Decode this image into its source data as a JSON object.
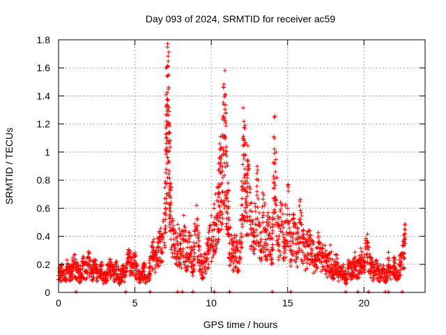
{
  "chart_data": {
    "type": "scatter",
    "title": "Day 093 of 2024, SRMTID for receiver ac59",
    "xlabel": "GPS time / hours",
    "ylabel": "SRMTID / TECUs",
    "xlim": [
      0,
      24
    ],
    "ylim": [
      0,
      1.8
    ],
    "xticks": [
      0,
      5,
      10,
      15,
      20
    ],
    "xtick_labels": [
      "0",
      "5",
      "10",
      "15",
      "20"
    ],
    "yticks": [
      0,
      0.2,
      0.4,
      0.6,
      0.8,
      1.0,
      1.2,
      1.4,
      1.6,
      1.8
    ],
    "ytick_labels": [
      "0",
      "0.2",
      "0.4",
      "0.6",
      "0.8",
      "1",
      "1.2",
      "1.4",
      "1.6",
      "1.8"
    ],
    "grid": true,
    "marker": "+",
    "color": "#ff0000",
    "series": [
      {
        "name": "SRMTID",
        "points": [
          [
            0.0,
            0.12
          ],
          [
            0.2,
            0.15
          ],
          [
            0.4,
            0.1
          ],
          [
            0.6,
            0.18
          ],
          [
            0.8,
            0.13
          ],
          [
            1.0,
            0.2
          ],
          [
            1.2,
            0.16
          ],
          [
            1.4,
            0.12
          ],
          [
            1.6,
            0.19
          ],
          [
            1.8,
            0.15
          ],
          [
            2.0,
            0.22
          ],
          [
            2.2,
            0.14
          ],
          [
            2.4,
            0.18
          ],
          [
            2.6,
            0.11
          ],
          [
            2.8,
            0.16
          ],
          [
            3.0,
            0.09
          ],
          [
            3.2,
            0.14
          ],
          [
            3.4,
            0.18
          ],
          [
            3.6,
            0.12
          ],
          [
            3.8,
            0.16
          ],
          [
            4.0,
            0.1
          ],
          [
            4.2,
            0.15
          ],
          [
            4.4,
            0.12
          ],
          [
            4.6,
            0.25
          ],
          [
            4.8,
            0.18
          ],
          [
            5.0,
            0.21
          ],
          [
            5.2,
            0.13
          ],
          [
            5.4,
            0.1
          ],
          [
            5.6,
            0.15
          ],
          [
            5.8,
            0.08
          ],
          [
            6.0,
            0.18
          ],
          [
            6.2,
            0.3
          ],
          [
            6.4,
            0.22
          ],
          [
            6.6,
            0.36
          ],
          [
            6.8,
            0.28
          ],
          [
            7.0,
            0.6
          ],
          [
            7.05,
            1.13
          ],
          [
            7.1,
            1.0
          ],
          [
            7.15,
            1.61
          ],
          [
            7.2,
            1.45
          ],
          [
            7.25,
            0.93
          ],
          [
            7.3,
            0.78
          ],
          [
            7.4,
            0.45
          ],
          [
            7.6,
            0.3
          ],
          [
            7.8,
            0.35
          ],
          [
            8.0,
            0.28
          ],
          [
            8.2,
            0.38
          ],
          [
            8.4,
            0.25
          ],
          [
            8.6,
            0.32
          ],
          [
            8.8,
            0.2
          ],
          [
            9.0,
            0.47
          ],
          [
            9.2,
            0.3
          ],
          [
            9.4,
            0.15
          ],
          [
            9.6,
            0.22
          ],
          [
            9.8,
            0.3
          ],
          [
            10.0,
            0.38
          ],
          [
            10.2,
            0.45
          ],
          [
            10.4,
            0.55
          ],
          [
            10.5,
            0.68
          ],
          [
            10.6,
            0.85
          ],
          [
            10.7,
            0.78
          ],
          [
            10.8,
            1.01
          ],
          [
            10.9,
            1.1
          ],
          [
            11.0,
            0.72
          ],
          [
            11.1,
            0.6
          ],
          [
            11.2,
            0.35
          ],
          [
            11.4,
            0.25
          ],
          [
            11.6,
            0.32
          ],
          [
            11.8,
            0.22
          ],
          [
            12.0,
            0.55
          ],
          [
            12.1,
            0.98
          ],
          [
            12.2,
            0.88
          ],
          [
            12.3,
            0.65
          ],
          [
            12.4,
            0.78
          ],
          [
            12.6,
            0.45
          ],
          [
            12.8,
            0.4
          ],
          [
            13.0,
            0.72
          ],
          [
            13.2,
            0.3
          ],
          [
            13.4,
            0.55
          ],
          [
            13.6,
            0.35
          ],
          [
            13.8,
            0.42
          ],
          [
            14.0,
            0.3
          ],
          [
            14.1,
            0.92
          ],
          [
            14.2,
            0.86
          ],
          [
            14.4,
            0.38
          ],
          [
            14.6,
            0.48
          ],
          [
            14.8,
            0.35
          ],
          [
            15.0,
            0.6
          ],
          [
            15.2,
            0.3
          ],
          [
            15.4,
            0.42
          ],
          [
            15.6,
            0.28
          ],
          [
            15.8,
            0.5
          ],
          [
            16.0,
            0.35
          ],
          [
            16.2,
            0.25
          ],
          [
            16.4,
            0.38
          ],
          [
            16.6,
            0.28
          ],
          [
            16.8,
            0.2
          ],
          [
            17.0,
            0.32
          ],
          [
            17.2,
            0.22
          ],
          [
            17.4,
            0.26
          ],
          [
            17.6,
            0.18
          ],
          [
            17.8,
            0.24
          ],
          [
            18.0,
            0.14
          ],
          [
            18.2,
            0.2
          ],
          [
            18.4,
            0.12
          ],
          [
            18.6,
            0.15
          ],
          [
            18.8,
            0.1
          ],
          [
            19.0,
            0.17
          ],
          [
            19.2,
            0.13
          ],
          [
            19.4,
            0.2
          ],
          [
            19.6,
            0.15
          ],
          [
            19.8,
            0.22
          ],
          [
            20.0,
            0.18
          ],
          [
            20.2,
            0.33
          ],
          [
            20.4,
            0.2
          ],
          [
            20.6,
            0.14
          ],
          [
            20.8,
            0.18
          ],
          [
            21.0,
            0.12
          ],
          [
            21.2,
            0.16
          ],
          [
            21.4,
            0.1
          ],
          [
            21.6,
            0.2
          ],
          [
            21.8,
            0.14
          ],
          [
            22.0,
            0.18
          ],
          [
            22.2,
            0.12
          ],
          [
            22.4,
            0.2
          ],
          [
            22.6,
            0.28
          ],
          [
            22.7,
            0.35
          ]
        ]
      }
    ],
    "noise_seed": 93
  }
}
